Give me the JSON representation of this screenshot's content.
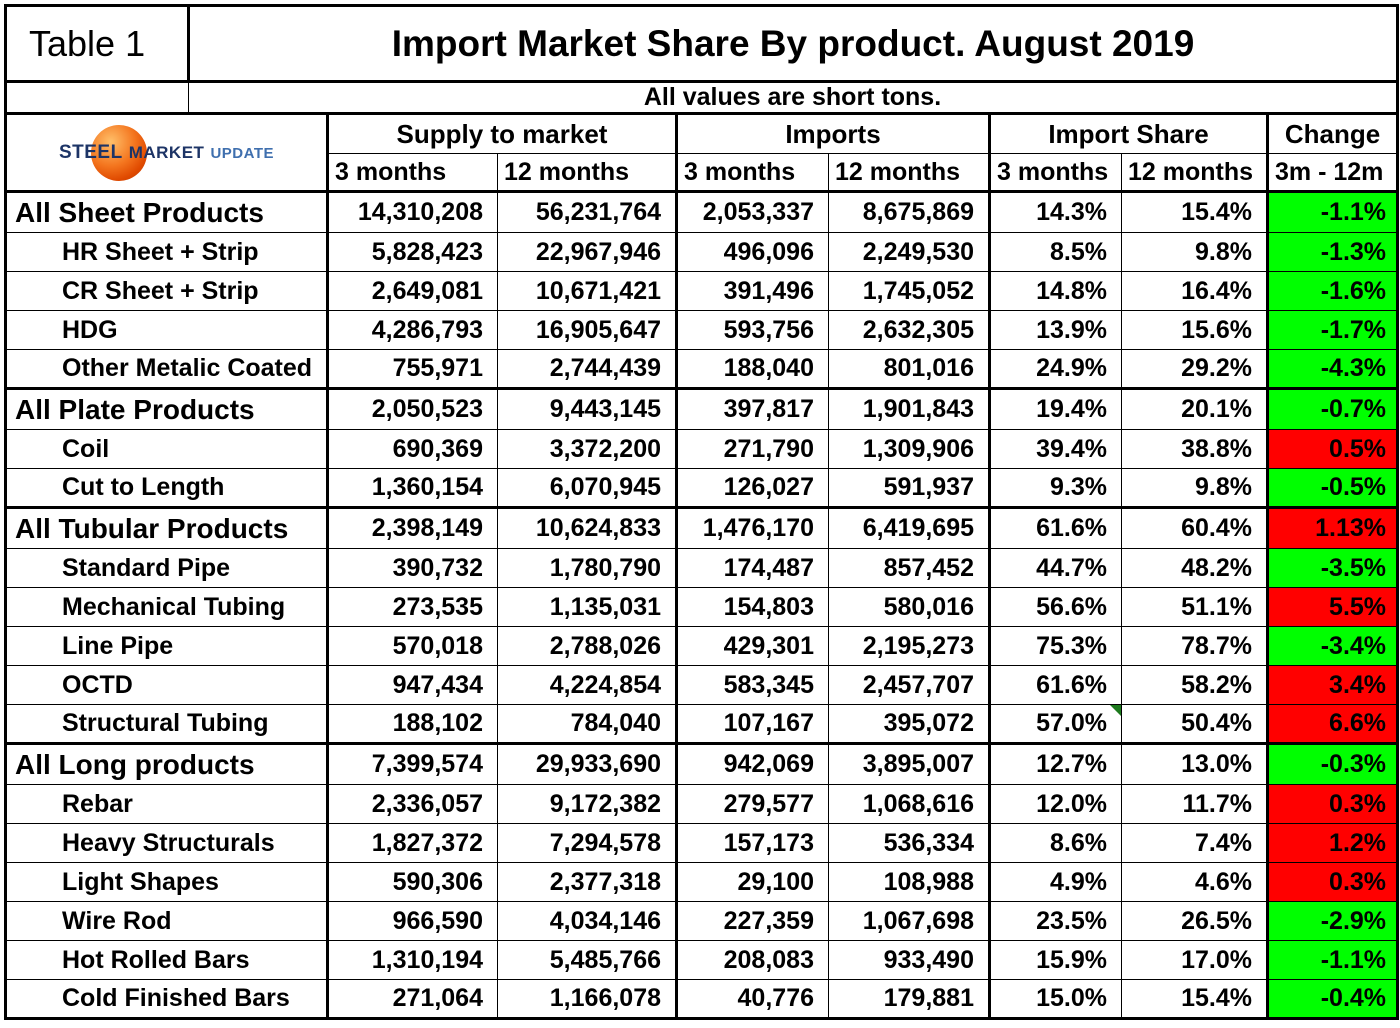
{
  "table_label": "Table 1",
  "logo": {
    "part1": "STEEL",
    "part2": "MARKET",
    "part3": "UPDATE",
    "navy": "#1d3466",
    "light_blue": "#3f6fae",
    "sphere_orange": "#f4761f"
  },
  "colors": {
    "green": "#00ff00",
    "red": "#ff0000"
  },
  "chart_data": {
    "type": "table",
    "title": "Import Market Share By product. August 2019",
    "units_note": "All values are short tons.",
    "column_groups": [
      {
        "label": "Supply to market",
        "columns": [
          "3 months",
          "12 months"
        ]
      },
      {
        "label": "Imports",
        "columns": [
          "3 months",
          "12 months"
        ]
      },
      {
        "label": "Import Share",
        "columns": [
          "3 months",
          "12 months"
        ]
      },
      {
        "label": "Change",
        "columns": [
          "3m - 12m"
        ]
      }
    ],
    "rows": [
      {
        "product": "All Sheet Products",
        "level": "section",
        "supply_3m": "14,310,208",
        "supply_12m": "56,231,764",
        "imports_3m": "2,053,337",
        "imports_12m": "8,675,869",
        "share_3m": "14.3%",
        "share_12m": "15.4%",
        "change": "-1.1%",
        "change_color": "green"
      },
      {
        "product": "HR Sheet + Strip",
        "level": "sub",
        "supply_3m": "5,828,423",
        "supply_12m": "22,967,946",
        "imports_3m": "496,096",
        "imports_12m": "2,249,530",
        "share_3m": "8.5%",
        "share_12m": "9.8%",
        "change": "-1.3%",
        "change_color": "green"
      },
      {
        "product": "CR Sheet + Strip",
        "level": "sub",
        "supply_3m": "2,649,081",
        "supply_12m": "10,671,421",
        "imports_3m": "391,496",
        "imports_12m": "1,745,052",
        "share_3m": "14.8%",
        "share_12m": "16.4%",
        "change": "-1.6%",
        "change_color": "green"
      },
      {
        "product": "HDG",
        "level": "sub",
        "supply_3m": "4,286,793",
        "supply_12m": "16,905,647",
        "imports_3m": "593,756",
        "imports_12m": "2,632,305",
        "share_3m": "13.9%",
        "share_12m": "15.6%",
        "change": "-1.7%",
        "change_color": "green"
      },
      {
        "product": "Other Metalic Coated",
        "level": "sub",
        "supply_3m": "755,971",
        "supply_12m": "2,744,439",
        "imports_3m": "188,040",
        "imports_12m": "801,016",
        "share_3m": "24.9%",
        "share_12m": "29.2%",
        "change": "-4.3%",
        "change_color": "green"
      },
      {
        "product": "All Plate Products",
        "level": "section",
        "supply_3m": "2,050,523",
        "supply_12m": "9,443,145",
        "imports_3m": "397,817",
        "imports_12m": "1,901,843",
        "share_3m": "19.4%",
        "share_12m": "20.1%",
        "change": "-0.7%",
        "change_color": "green"
      },
      {
        "product": "Coil",
        "level": "sub",
        "supply_3m": "690,369",
        "supply_12m": "3,372,200",
        "imports_3m": "271,790",
        "imports_12m": "1,309,906",
        "share_3m": "39.4%",
        "share_12m": "38.8%",
        "change": "0.5%",
        "change_color": "red"
      },
      {
        "product": "Cut to Length",
        "level": "sub",
        "supply_3m": "1,360,154",
        "supply_12m": "6,070,945",
        "imports_3m": "126,027",
        "imports_12m": "591,937",
        "share_3m": "9.3%",
        "share_12m": "9.8%",
        "change": "-0.5%",
        "change_color": "green"
      },
      {
        "product": "All Tubular Products",
        "level": "section",
        "supply_3m": "2,398,149",
        "supply_12m": "10,624,833",
        "imports_3m": "1,476,170",
        "imports_12m": "6,419,695",
        "share_3m": "61.6%",
        "share_12m": "60.4%",
        "change": "1.13%",
        "change_color": "red"
      },
      {
        "product": "Standard Pipe",
        "level": "sub",
        "supply_3m": "390,732",
        "supply_12m": "1,780,790",
        "imports_3m": "174,487",
        "imports_12m": "857,452",
        "share_3m": "44.7%",
        "share_12m": "48.2%",
        "change": "-3.5%",
        "change_color": "green"
      },
      {
        "product": "Mechanical Tubing",
        "level": "sub",
        "supply_3m": "273,535",
        "supply_12m": "1,135,031",
        "imports_3m": "154,803",
        "imports_12m": "580,016",
        "share_3m": "56.6%",
        "share_12m": "51.1%",
        "change": "5.5%",
        "change_color": "red"
      },
      {
        "product": "Line Pipe",
        "level": "sub",
        "supply_3m": "570,018",
        "supply_12m": "2,788,026",
        "imports_3m": "429,301",
        "imports_12m": "2,195,273",
        "share_3m": "75.3%",
        "share_12m": "78.7%",
        "change": "-3.4%",
        "change_color": "green"
      },
      {
        "product": "OCTD",
        "level": "sub",
        "supply_3m": "947,434",
        "supply_12m": "4,224,854",
        "imports_3m": "583,345",
        "imports_12m": "2,457,707",
        "share_3m": "61.6%",
        "share_12m": "58.2%",
        "change": "3.4%",
        "change_color": "red"
      },
      {
        "product": "Structural Tubing",
        "level": "sub",
        "supply_3m": "188,102",
        "supply_12m": "784,040",
        "imports_3m": "107,167",
        "imports_12m": "395,072",
        "share_3m": "57.0%",
        "share_12m": "50.4%",
        "change": "6.6%",
        "change_color": "red",
        "comment_3m": true
      },
      {
        "product": "All Long products",
        "level": "section",
        "supply_3m": "7,399,574",
        "supply_12m": "29,933,690",
        "imports_3m": "942,069",
        "imports_12m": "3,895,007",
        "share_3m": "12.7%",
        "share_12m": "13.0%",
        "change": "-0.3%",
        "change_color": "green"
      },
      {
        "product": "Rebar",
        "level": "sub",
        "supply_3m": "2,336,057",
        "supply_12m": "9,172,382",
        "imports_3m": "279,577",
        "imports_12m": "1,068,616",
        "share_3m": "12.0%",
        "share_12m": "11.7%",
        "change": "0.3%",
        "change_color": "red"
      },
      {
        "product": "Heavy Structurals",
        "level": "sub",
        "supply_3m": "1,827,372",
        "supply_12m": "7,294,578",
        "imports_3m": "157,173",
        "imports_12m": "536,334",
        "share_3m": "8.6%",
        "share_12m": "7.4%",
        "change": "1.2%",
        "change_color": "red"
      },
      {
        "product": "Light Shapes",
        "level": "sub",
        "supply_3m": "590,306",
        "supply_12m": "2,377,318",
        "imports_3m": "29,100",
        "imports_12m": "108,988",
        "share_3m": "4.9%",
        "share_12m": "4.6%",
        "change": "0.3%",
        "change_color": "red"
      },
      {
        "product": "Wire Rod",
        "level": "sub",
        "supply_3m": "966,590",
        "supply_12m": "4,034,146",
        "imports_3m": "227,359",
        "imports_12m": "1,067,698",
        "share_3m": "23.5%",
        "share_12m": "26.5%",
        "change": "-2.9%",
        "change_color": "green"
      },
      {
        "product": "Hot Rolled Bars",
        "level": "sub",
        "supply_3m": "1,310,194",
        "supply_12m": "5,485,766",
        "imports_3m": "208,083",
        "imports_12m": "933,490",
        "share_3m": "15.9%",
        "share_12m": "17.0%",
        "change": "-1.1%",
        "change_color": "green"
      },
      {
        "product": "Cold Finished Bars",
        "level": "sub",
        "supply_3m": "271,064",
        "supply_12m": "1,166,078",
        "imports_3m": "40,776",
        "imports_12m": "179,881",
        "share_3m": "15.0%",
        "share_12m": "15.4%",
        "change": "-0.4%",
        "change_color": "green"
      }
    ]
  }
}
